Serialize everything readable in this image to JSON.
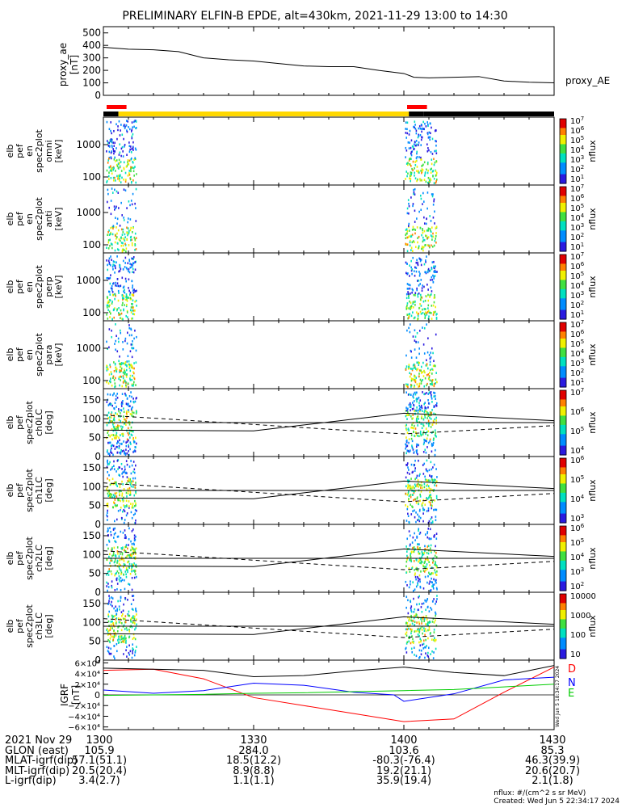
{
  "title": "PRELIMINARY ELFIN-B EPDE, alt=430km, 2021-11-29 13:00 to 14:30",
  "chart_data": [
    {
      "type": "line",
      "name": "proxy_ae",
      "ylabel": "proxy_ae [nT]",
      "legend": "proxy_AE",
      "x": [
        0,
        5,
        10,
        15,
        20,
        25,
        30,
        35,
        40,
        45,
        50,
        55,
        60,
        62,
        65,
        70,
        75,
        80,
        85,
        90
      ],
      "y": [
        385,
        370,
        365,
        350,
        300,
        285,
        275,
        255,
        235,
        230,
        230,
        200,
        175,
        145,
        140,
        145,
        150,
        115,
        105,
        100
      ],
      "ylim": [
        0,
        550
      ],
      "yticks": [
        "500",
        "400",
        "300",
        "200",
        "100",
        "0"
      ]
    },
    {
      "type": "timeline-bar",
      "segments": [
        {
          "from": 0,
          "to": 3,
          "color": "#000000"
        },
        {
          "from": 3,
          "to": 61,
          "color": "#ffd800"
        },
        {
          "from": 61,
          "to": 64,
          "color": "#000000"
        },
        {
          "from": 64,
          "to": 90,
          "color": "#000000"
        }
      ],
      "markers": [
        {
          "from": 0,
          "to": 3,
          "color": "#ff0000"
        },
        {
          "from": 60,
          "to": 63,
          "color": "#ff0000"
        }
      ]
    },
    {
      "type": "heatmap",
      "name": "omni",
      "ylabel": [
        "elb",
        "pef",
        "en",
        "spec2plot",
        "omni",
        "[keV]"
      ],
      "yticks": [
        "1000",
        "100"
      ],
      "scale": "log",
      "colorbar_label": "nflux",
      "colorbar_ticks": [
        "10^7",
        "10^6",
        "10^5",
        "10^4",
        "10^3",
        "10^2",
        "10^1"
      ]
    },
    {
      "type": "heatmap",
      "name": "anti",
      "ylabel": [
        "elb",
        "pef",
        "en",
        "spec2plot",
        "anti",
        "[keV]"
      ],
      "yticks": [
        "1000",
        "100"
      ],
      "scale": "log",
      "colorbar_label": "nflux",
      "colorbar_ticks": [
        "10^7",
        "10^6",
        "10^5",
        "10^4",
        "10^3",
        "10^2",
        "10^1"
      ]
    },
    {
      "type": "heatmap",
      "name": "perp",
      "ylabel": [
        "elb",
        "pef",
        "en",
        "spec2plot",
        "perp",
        "[keV]"
      ],
      "yticks": [
        "1000",
        "100"
      ],
      "scale": "log",
      "colorbar_label": "nflux",
      "colorbar_ticks": [
        "10^7",
        "10^6",
        "10^5",
        "10^4",
        "10^3",
        "10^2",
        "10^1"
      ]
    },
    {
      "type": "heatmap",
      "name": "para",
      "ylabel": [
        "elb",
        "pef",
        "en",
        "spec2plot",
        "para",
        "[keV]"
      ],
      "yticks": [
        "1000",
        "100"
      ],
      "scale": "log",
      "colorbar_label": "nflux",
      "colorbar_ticks": [
        "10^7",
        "10^6",
        "10^5",
        "10^4",
        "10^3",
        "10^2",
        "10^1"
      ]
    },
    {
      "type": "heatmap",
      "name": "ch0LC",
      "ylabel": [
        "elb",
        "pef",
        "spec2plot",
        "ch0LC",
        "[deg]"
      ],
      "yticks": [
        "150",
        "100",
        "50",
        "0"
      ],
      "scale": "linear",
      "colorbar_label": "nflux",
      "colorbar_ticks": [
        "10^7",
        "10^6",
        "10^5",
        "10^4"
      ]
    },
    {
      "type": "heatmap",
      "name": "ch1LC",
      "ylabel": [
        "elb",
        "pef",
        "spec2plot",
        "ch1LC",
        "[deg]"
      ],
      "yticks": [
        "150",
        "100",
        "50",
        "0"
      ],
      "scale": "linear",
      "colorbar_label": "nflux",
      "colorbar_ticks": [
        "10^6",
        "10^5",
        "10^4",
        "10^3"
      ]
    },
    {
      "type": "heatmap",
      "name": "ch2LC",
      "ylabel": [
        "elb",
        "pef",
        "spec2plot",
        "ch2LC",
        "[deg]"
      ],
      "yticks": [
        "150",
        "100",
        "50",
        "0"
      ],
      "scale": "linear",
      "colorbar_label": "nflux",
      "colorbar_ticks": [
        "10^6",
        "10^5",
        "10^4",
        "10^3",
        "10^2"
      ]
    },
    {
      "type": "heatmap",
      "name": "ch3LC",
      "ylabel": [
        "elb",
        "pef",
        "spec2plot",
        "ch3LC",
        "[deg]"
      ],
      "yticks": [
        "150",
        "100",
        "50",
        "0"
      ],
      "scale": "linear",
      "colorbar_label": "nflux",
      "colorbar_ticks": [
        "10000",
        "1000",
        "100",
        "10"
      ]
    },
    {
      "type": "line",
      "name": "IGRF",
      "ylabel": "IGRF [nT]",
      "ylim": [
        -65000,
        65000
      ],
      "yticks": [
        "6×10⁴",
        "4×10⁴",
        "2×10⁴",
        "0",
        "−2×10⁴",
        "−4×10⁴",
        "−6×10⁴"
      ],
      "series": [
        {
          "name": "D",
          "color": "#ff0000",
          "x": [
            0,
            10,
            20,
            30,
            40,
            50,
            60,
            70,
            80,
            90
          ],
          "y": [
            46000,
            48000,
            30000,
            -5000,
            -20000,
            -35000,
            -50000,
            -45000,
            5000,
            52000
          ]
        },
        {
          "name": "N",
          "color": "#0000ff",
          "x": [
            0,
            10,
            20,
            30,
            40,
            50,
            58,
            60,
            70,
            80,
            90
          ],
          "y": [
            9000,
            3000,
            8000,
            22000,
            18000,
            5000,
            0,
            -12000,
            2000,
            28000,
            33000
          ]
        },
        {
          "name": "E",
          "color": "#00cc00",
          "x": [
            0,
            10,
            20,
            30,
            40,
            50,
            60,
            70,
            80,
            90
          ],
          "y": [
            -1000,
            0,
            1000,
            3000,
            4000,
            6000,
            8000,
            10000,
            15000,
            20000
          ]
        },
        {
          "name": "",
          "color": "#000000",
          "x": [
            0,
            10,
            20,
            30,
            40,
            50,
            60,
            70,
            80,
            90
          ],
          "y": [
            50000,
            48000,
            46000,
            34000,
            36000,
            45000,
            52000,
            42000,
            36000,
            55000
          ]
        }
      ]
    }
  ],
  "footer": {
    "rows": [
      {
        "label": "2021 Nov 29",
        "values": [
          "1300",
          "1330",
          "1400",
          "1430"
        ]
      },
      {
        "label": "GLON (east)",
        "values": [
          "105.9",
          "284.0",
          "103.6",
          "85.3"
        ]
      },
      {
        "label": "MLAT-igrf(dip)",
        "values": [
          "57.1(51.1)",
          "18.5(12.2)",
          "-80.3(-76.4)",
          "46.3(39.9)"
        ]
      },
      {
        "label": "MLT-igrf(dip)",
        "values": [
          "20.5(20.4)",
          "8.9(8.8)",
          "19.2(21.1)",
          "20.6(20.7)"
        ]
      },
      {
        "label": "L-igrf(dip)",
        "values": [
          "3.4(2.7)",
          "1.1(1.1)",
          "35.9(19.4)",
          "2.1(1.8)"
        ]
      }
    ],
    "units": "nflux: #/(cm^2 s sr MeV)",
    "created": "Created: Wed Jun  5 22:34:17 2024"
  },
  "legend_labels": {
    "proxy": "proxy_AE",
    "igrf_D": "D",
    "igrf_N": "N",
    "igrf_E": "E"
  },
  "side_stamp": "Wed Jun 5 18:34:17 2024"
}
